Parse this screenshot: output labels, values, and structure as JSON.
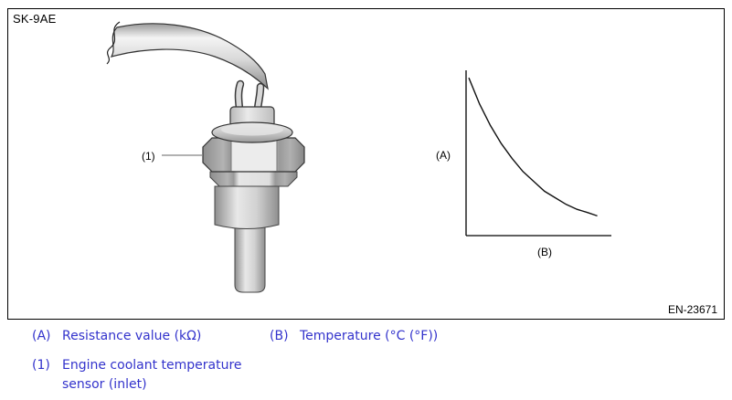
{
  "figure": {
    "code": "SK-9AE",
    "ref": "EN-23671",
    "sensor_callout": "(1)",
    "graph": {
      "type": "line",
      "ylabel": "(A)",
      "xlabel": "(B)",
      "trend": "decreasing",
      "curve": [
        [
          0.02,
          0.96
        ],
        [
          0.1,
          0.8
        ],
        [
          0.18,
          0.67
        ],
        [
          0.26,
          0.56
        ],
        [
          0.34,
          0.47
        ],
        [
          0.42,
          0.39
        ],
        [
          0.5,
          0.33
        ],
        [
          0.58,
          0.27
        ],
        [
          0.66,
          0.23
        ],
        [
          0.74,
          0.19
        ],
        [
          0.82,
          0.16
        ],
        [
          0.9,
          0.14
        ],
        [
          0.97,
          0.12
        ]
      ]
    }
  },
  "legend": {
    "items": [
      {
        "tag": "(A)",
        "text": "Resistance value (kΩ)"
      },
      {
        "tag": "(B)",
        "text": "Temperature (°C (°F))"
      },
      {
        "tag": "(1)",
        "text": "Engine coolant temperature sensor (inlet)"
      }
    ]
  },
  "colors": {
    "legend_text": "#3333cc",
    "line_art": "#000000",
    "leader_line": "#999999"
  }
}
